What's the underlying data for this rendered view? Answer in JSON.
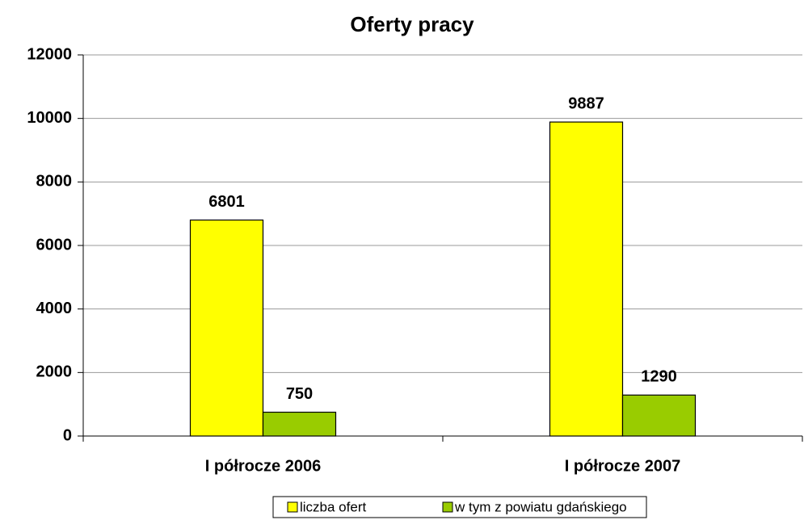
{
  "chart_data": {
    "type": "bar",
    "title": "Oferty pracy",
    "categories": [
      "I półrocze 2006",
      "I półrocze 2007"
    ],
    "series": [
      {
        "name": "liczba ofert",
        "color": "#ffff00",
        "values": [
          6801,
          9887
        ]
      },
      {
        "name": "w tym z powiatu gdańskiego",
        "color": "#99cc00",
        "values": [
          750,
          1290
        ]
      }
    ],
    "ylim": [
      0,
      12000
    ],
    "yticks": [
      0,
      2000,
      4000,
      6000,
      8000,
      10000,
      12000
    ],
    "grid": true,
    "legend": "bottom"
  }
}
